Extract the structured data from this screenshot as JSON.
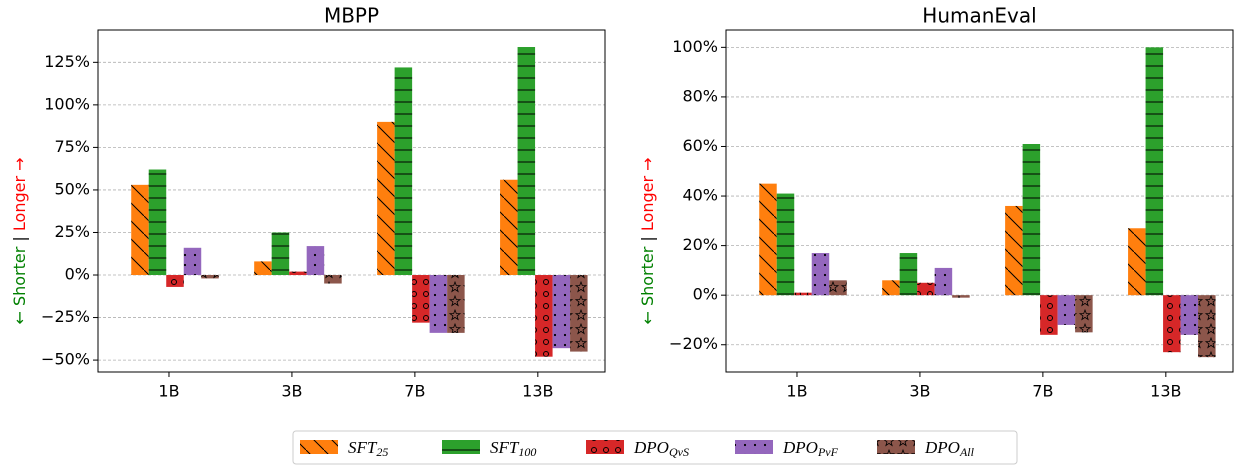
{
  "chart_data": [
    {
      "type": "bar",
      "title": "MBPP",
      "ylabel_shorter": "← Shorter",
      "ylabel_separator": "|",
      "ylabel_longer": "Longer →",
      "categories": [
        "1B",
        "3B",
        "7B",
        "13B"
      ],
      "series": [
        {
          "name": "SFT",
          "subscript": "25",
          "color": "#ff7f0e",
          "hatch": "\\",
          "values": [
            53,
            8,
            90,
            56
          ]
        },
        {
          "name": "SFT",
          "subscript": "100",
          "color": "#2ca02c",
          "hatch": "-",
          "values": [
            62,
            25,
            122,
            134
          ]
        },
        {
          "name": "DPO",
          "subscript": "QvS",
          "color": "#d62728",
          "hatch": "o",
          "values": [
            -7,
            2,
            -28,
            -48
          ]
        },
        {
          "name": "DPO",
          "subscript": "PvF",
          "color": "#9467bd",
          "hatch": ".",
          "values": [
            16,
            17,
            -34,
            -43
          ]
        },
        {
          "name": "DPO",
          "subscript": "All",
          "color": "#8c564b",
          "hatch": "*",
          "values": [
            -2,
            -5,
            -34,
            -45
          ]
        }
      ],
      "ylim": [
        -57,
        144
      ],
      "yticks": [
        {
          "value": -50,
          "label": "−50%"
        },
        {
          "value": -25,
          "label": "−25%"
        },
        {
          "value": 0,
          "label": "0%"
        },
        {
          "value": 25,
          "label": "25%"
        },
        {
          "value": 50,
          "label": "50%"
        },
        {
          "value": 75,
          "label": "75%"
        },
        {
          "value": 100,
          "label": "100%"
        },
        {
          "value": 125,
          "label": "125%"
        }
      ],
      "grid": true
    },
    {
      "type": "bar",
      "title": "HumanEval",
      "ylabel_shorter": "← Shorter",
      "ylabel_separator": "|",
      "ylabel_longer": "Longer →",
      "categories": [
        "1B",
        "3B",
        "7B",
        "13B"
      ],
      "series": [
        {
          "name": "SFT",
          "subscript": "25",
          "color": "#ff7f0e",
          "hatch": "\\",
          "values": [
            45,
            6,
            36,
            27
          ]
        },
        {
          "name": "SFT",
          "subscript": "100",
          "color": "#2ca02c",
          "hatch": "-",
          "values": [
            41,
            17,
            61,
            100
          ]
        },
        {
          "name": "DPO",
          "subscript": "QvS",
          "color": "#d62728",
          "hatch": "o",
          "values": [
            1,
            5,
            -16,
            -23
          ]
        },
        {
          "name": "DPO",
          "subscript": "PvF",
          "color": "#9467bd",
          "hatch": ".",
          "values": [
            17,
            11,
            -12,
            -16
          ]
        },
        {
          "name": "DPO",
          "subscript": "All",
          "color": "#8c564b",
          "hatch": "*",
          "values": [
            6,
            -1,
            -15,
            -25
          ]
        }
      ],
      "ylim": [
        -31,
        107
      ],
      "yticks": [
        {
          "value": -20,
          "label": "−20%"
        },
        {
          "value": 0,
          "label": "0%"
        },
        {
          "value": 20,
          "label": "20%"
        },
        {
          "value": 40,
          "label": "40%"
        },
        {
          "value": 60,
          "label": "60%"
        },
        {
          "value": 80,
          "label": "80%"
        },
        {
          "value": 100,
          "label": "100%"
        }
      ],
      "grid": true
    }
  ]
}
